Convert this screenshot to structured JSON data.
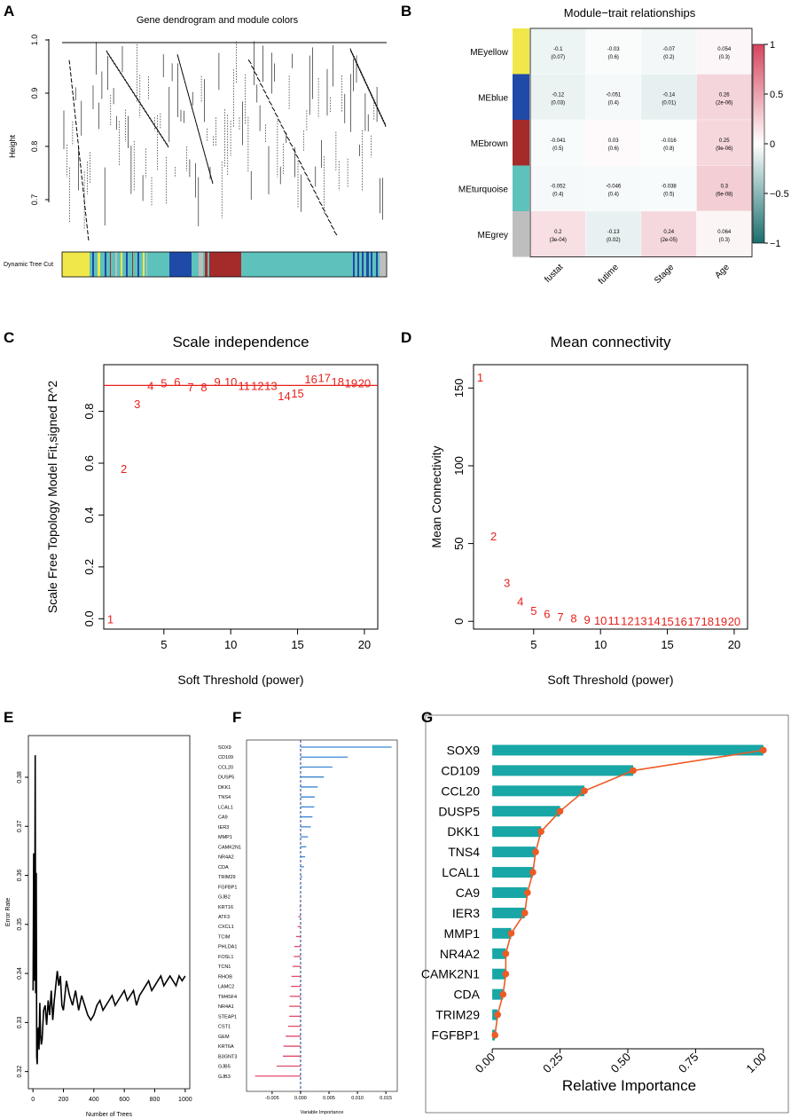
{
  "panels": {
    "A": {
      "letter": "A",
      "title": "Gene dendrogram and module colors",
      "ylabel": "Height",
      "yticks": [
        "0.7",
        "0.8",
        "0.9",
        "1.0"
      ],
      "row_label": "Dynamic Tree Cut"
    },
    "B": {
      "letter": "B",
      "title": "Module−trait relationships",
      "modules": [
        "MEyellow",
        "MEblue",
        "MEbrown",
        "MEturquoise",
        "MEgrey"
      ],
      "module_colors": [
        "#f0e84a",
        "#1f4aa8",
        "#a52a2a",
        "#5ec2bc",
        "#bebebe"
      ],
      "traits": [
        "fustat",
        "futime",
        "Stage",
        "Age"
      ],
      "cells": [
        [
          {
            "v": "-0.1",
            "p": "(0.07)"
          },
          {
            "v": "-0.03",
            "p": "(0.6)"
          },
          {
            "v": "-0.07",
            "p": "(0.2)"
          },
          {
            "v": "0.054",
            "p": "(0.3)"
          }
        ],
        [
          {
            "v": "-0.12",
            "p": "(0.03)"
          },
          {
            "v": "-0.051",
            "p": "(0.4)"
          },
          {
            "v": "-0.14",
            "p": "(0.01)"
          },
          {
            "v": "0.26",
            "p": "(2e-06)"
          }
        ],
        [
          {
            "v": "-0.041",
            "p": "(0.5)"
          },
          {
            "v": "0.03",
            "p": "(0.6)"
          },
          {
            "v": "-0.016",
            "p": "(0.8)"
          },
          {
            "v": "0.25",
            "p": "(9e-06)"
          }
        ],
        [
          {
            "v": "-0.052",
            "p": "(0.4)"
          },
          {
            "v": "-0.046",
            "p": "(0.4)"
          },
          {
            "v": "-0.038",
            "p": "(0.5)"
          },
          {
            "v": "0.3",
            "p": "(6e-08)"
          }
        ],
        [
          {
            "v": "0.2",
            "p": "(3e-04)"
          },
          {
            "v": "-0.13",
            "p": "(0.02)"
          },
          {
            "v": "0.24",
            "p": "(2e-05)"
          },
          {
            "v": "0.064",
            "p": "(0.3)"
          }
        ]
      ],
      "colorbar_ticks": [
        "1",
        "0.5",
        "0",
        "−0.5",
        "−1"
      ]
    },
    "C": {
      "letter": "C"
    },
    "D": {
      "letter": "D"
    },
    "E": {
      "letter": "E"
    },
    "F": {
      "letter": "F"
    },
    "G": {
      "letter": "G"
    }
  },
  "chart_data": [
    {
      "id": "C",
      "type": "scatter",
      "title": "Scale independence",
      "xlabel": "Soft Threshold (power)",
      "ylabel": "Scale Free Topology Model Fit,signed R^2",
      "xlim": [
        0.5,
        21
      ],
      "ylim": [
        -0.04,
        0.98
      ],
      "xticks": [
        5,
        10,
        15,
        20
      ],
      "yticks": [
        "0.0",
        "0.2",
        "0.4",
        "0.6",
        "0.8"
      ],
      "ytick_values": [
        0,
        0.2,
        0.4,
        0.6,
        0.8
      ],
      "x": [
        1,
        2,
        3,
        4,
        5,
        6,
        7,
        8,
        9,
        10,
        11,
        12,
        13,
        14,
        15,
        16,
        17,
        18,
        19,
        20
      ],
      "y": [
        0.0,
        0.58,
        0.83,
        0.9,
        0.91,
        0.915,
        0.895,
        0.895,
        0.915,
        0.915,
        0.9,
        0.9,
        0.9,
        0.86,
        0.87,
        0.925,
        0.93,
        0.915,
        0.91,
        0.91
      ],
      "labels": [
        "1",
        "2",
        "3",
        "4",
        "5",
        "6",
        "7",
        "8",
        "9",
        "10",
        "11",
        "12",
        "13",
        "14",
        "15",
        "16",
        "17",
        "18",
        "19",
        "20"
      ],
      "hline": 0.9,
      "marker_color": "#e8201c"
    },
    {
      "id": "D",
      "type": "scatter",
      "title": "Mean connectivity",
      "xlabel": "Soft Threshold (power)",
      "ylabel": "Mean Connectivity",
      "xlim": [
        0.5,
        21
      ],
      "ylim": [
        -5,
        165
      ],
      "xticks": [
        5,
        10,
        15,
        20
      ],
      "yticks": [
        "0",
        "50",
        "100",
        "150"
      ],
      "ytick_values": [
        0,
        50,
        100,
        150
      ],
      "x": [
        1,
        2,
        3,
        4,
        5,
        6,
        7,
        8,
        9,
        10,
        11,
        12,
        13,
        14,
        15,
        16,
        17,
        18,
        19,
        20
      ],
      "y": [
        157,
        55,
        25,
        13,
        7,
        5,
        3,
        2,
        1.2,
        0.8,
        0.6,
        0.5,
        0.4,
        0.3,
        0.2,
        0.2,
        0.1,
        0.1,
        0.1,
        0.1
      ],
      "labels": [
        "1",
        "2",
        "3",
        "4",
        "5",
        "6",
        "7",
        "8",
        "9",
        "10",
        "11",
        "12",
        "13",
        "14",
        "15",
        "16",
        "17",
        "18",
        "19",
        "20"
      ],
      "marker_color": "#e8201c"
    },
    {
      "id": "E",
      "type": "line",
      "title": "",
      "xlabel": "Number of Trees",
      "ylabel": "Error Rate",
      "xlim": [
        -30,
        1030
      ],
      "ylim": [
        0.3165,
        0.3885
      ],
      "xticks": [
        0,
        200,
        400,
        600,
        800,
        1000
      ],
      "yticks": [
        "0.32",
        "0.33",
        "0.34",
        "0.35",
        "0.36",
        "0.37",
        "0.38"
      ],
      "ytick_values": [
        0.32,
        0.33,
        0.34,
        0.35,
        0.36,
        0.37,
        0.38
      ],
      "x": [
        1,
        5,
        10,
        12,
        15,
        18,
        20,
        22,
        25,
        28,
        30,
        35,
        40,
        45,
        50,
        55,
        60,
        70,
        80,
        90,
        100,
        110,
        120,
        130,
        140,
        150,
        160,
        170,
        180,
        190,
        200,
        220,
        240,
        260,
        280,
        300,
        320,
        340,
        360,
        380,
        400,
        420,
        440,
        460,
        480,
        500,
        520,
        540,
        560,
        580,
        600,
        620,
        640,
        660,
        680,
        700,
        720,
        740,
        760,
        780,
        800,
        820,
        840,
        860,
        880,
        900,
        920,
        940,
        960,
        980,
        1000
      ],
      "y": [
        0.3365,
        0.3645,
        0.3385,
        0.348,
        0.3845,
        0.336,
        0.3365,
        0.3605,
        0.323,
        0.3215,
        0.327,
        0.329,
        0.3245,
        0.334,
        0.3275,
        0.3255,
        0.3265,
        0.3325,
        0.3335,
        0.3295,
        0.3345,
        0.3315,
        0.3365,
        0.3305,
        0.3345,
        0.3375,
        0.3405,
        0.3375,
        0.3395,
        0.3335,
        0.3325,
        0.3385,
        0.3355,
        0.3335,
        0.3365,
        0.3325,
        0.3355,
        0.3335,
        0.3315,
        0.3305,
        0.3315,
        0.3335,
        0.3345,
        0.3325,
        0.3335,
        0.3345,
        0.3355,
        0.3335,
        0.3345,
        0.3355,
        0.3365,
        0.3345,
        0.3355,
        0.3365,
        0.3335,
        0.3355,
        0.3365,
        0.3375,
        0.3385,
        0.3365,
        0.3375,
        0.3385,
        0.3395,
        0.3375,
        0.3385,
        0.3395,
        0.3385,
        0.3375,
        0.3395,
        0.3385,
        0.3395
      ],
      "line_color": "#000000"
    },
    {
      "id": "F",
      "type": "bar",
      "orientation": "horizontal",
      "title": "",
      "xlabel": "Variable Importance",
      "ylabel": "",
      "xlim": [
        -0.0095,
        0.017
      ],
      "xticks": [
        "-0.005",
        "0.000",
        "0.005",
        "0.010",
        "0.015"
      ],
      "xtick_values": [
        -0.005,
        0,
        0.005,
        0.01,
        0.015
      ],
      "categories": [
        "SOX9",
        "CD109",
        "CCL20",
        "DUSP5",
        "DKK1",
        "TNS4",
        "LCAL1",
        "CA9",
        "IER3",
        "MMP1",
        "CAMK2N1",
        "NR4A2",
        "CDA",
        "TRIM29",
        "FGFBP1",
        "GJB2",
        "KRT16",
        "ATF3",
        "CXCL1",
        "TCIM",
        "PHLDA1",
        "FOSL1",
        "TCN1",
        "RHOB",
        "LAMC2",
        "TM4SF4",
        "NR4A1",
        "STEAP1",
        "CST1",
        "GEM",
        "KRT6A",
        "B3GNT3",
        "GJB5",
        "GJB3"
      ],
      "values": [
        0.016,
        0.0083,
        0.0056,
        0.0041,
        0.003,
        0.0025,
        0.0024,
        0.0021,
        0.0018,
        0.0013,
        0.001,
        0.0008,
        0.0006,
        0.0003,
        0.0002,
        -0.0001,
        -0.0002,
        -0.0004,
        -0.0005,
        -0.0008,
        -0.0011,
        -0.0012,
        -0.0014,
        -0.0016,
        -0.0017,
        -0.0019,
        -0.002,
        -0.002,
        -0.0022,
        -0.0026,
        -0.003,
        -0.0031,
        -0.0042,
        -0.008
      ],
      "positive_color": "#3a86d4",
      "negative_color": "#e04a6a"
    },
    {
      "id": "G",
      "type": "bar",
      "orientation": "horizontal",
      "title": "",
      "xlabel": "Relative Importance",
      "ylabel": "",
      "xlim": [
        -0.02,
        1.03
      ],
      "xticks": [
        "0.00",
        "0.25",
        "0.50",
        "0.75",
        "1.00"
      ],
      "xtick_values": [
        0,
        0.25,
        0.5,
        0.75,
        1.0
      ],
      "categories": [
        "SOX9",
        "CD109",
        "CCL20",
        "DUSP5",
        "DKK1",
        "TNS4",
        "LCAL1",
        "CA9",
        "IER3",
        "MMP1",
        "NR4A2",
        "CAMK2N1",
        "CDA",
        "TRIM29",
        "FGFBP1"
      ],
      "values": [
        1.0,
        0.52,
        0.34,
        0.25,
        0.18,
        0.16,
        0.15,
        0.13,
        0.12,
        0.07,
        0.05,
        0.05,
        0.04,
        0.02,
        0.01
      ],
      "bar_color": "#18a6a6",
      "line_color": "#ee5a24"
    }
  ]
}
